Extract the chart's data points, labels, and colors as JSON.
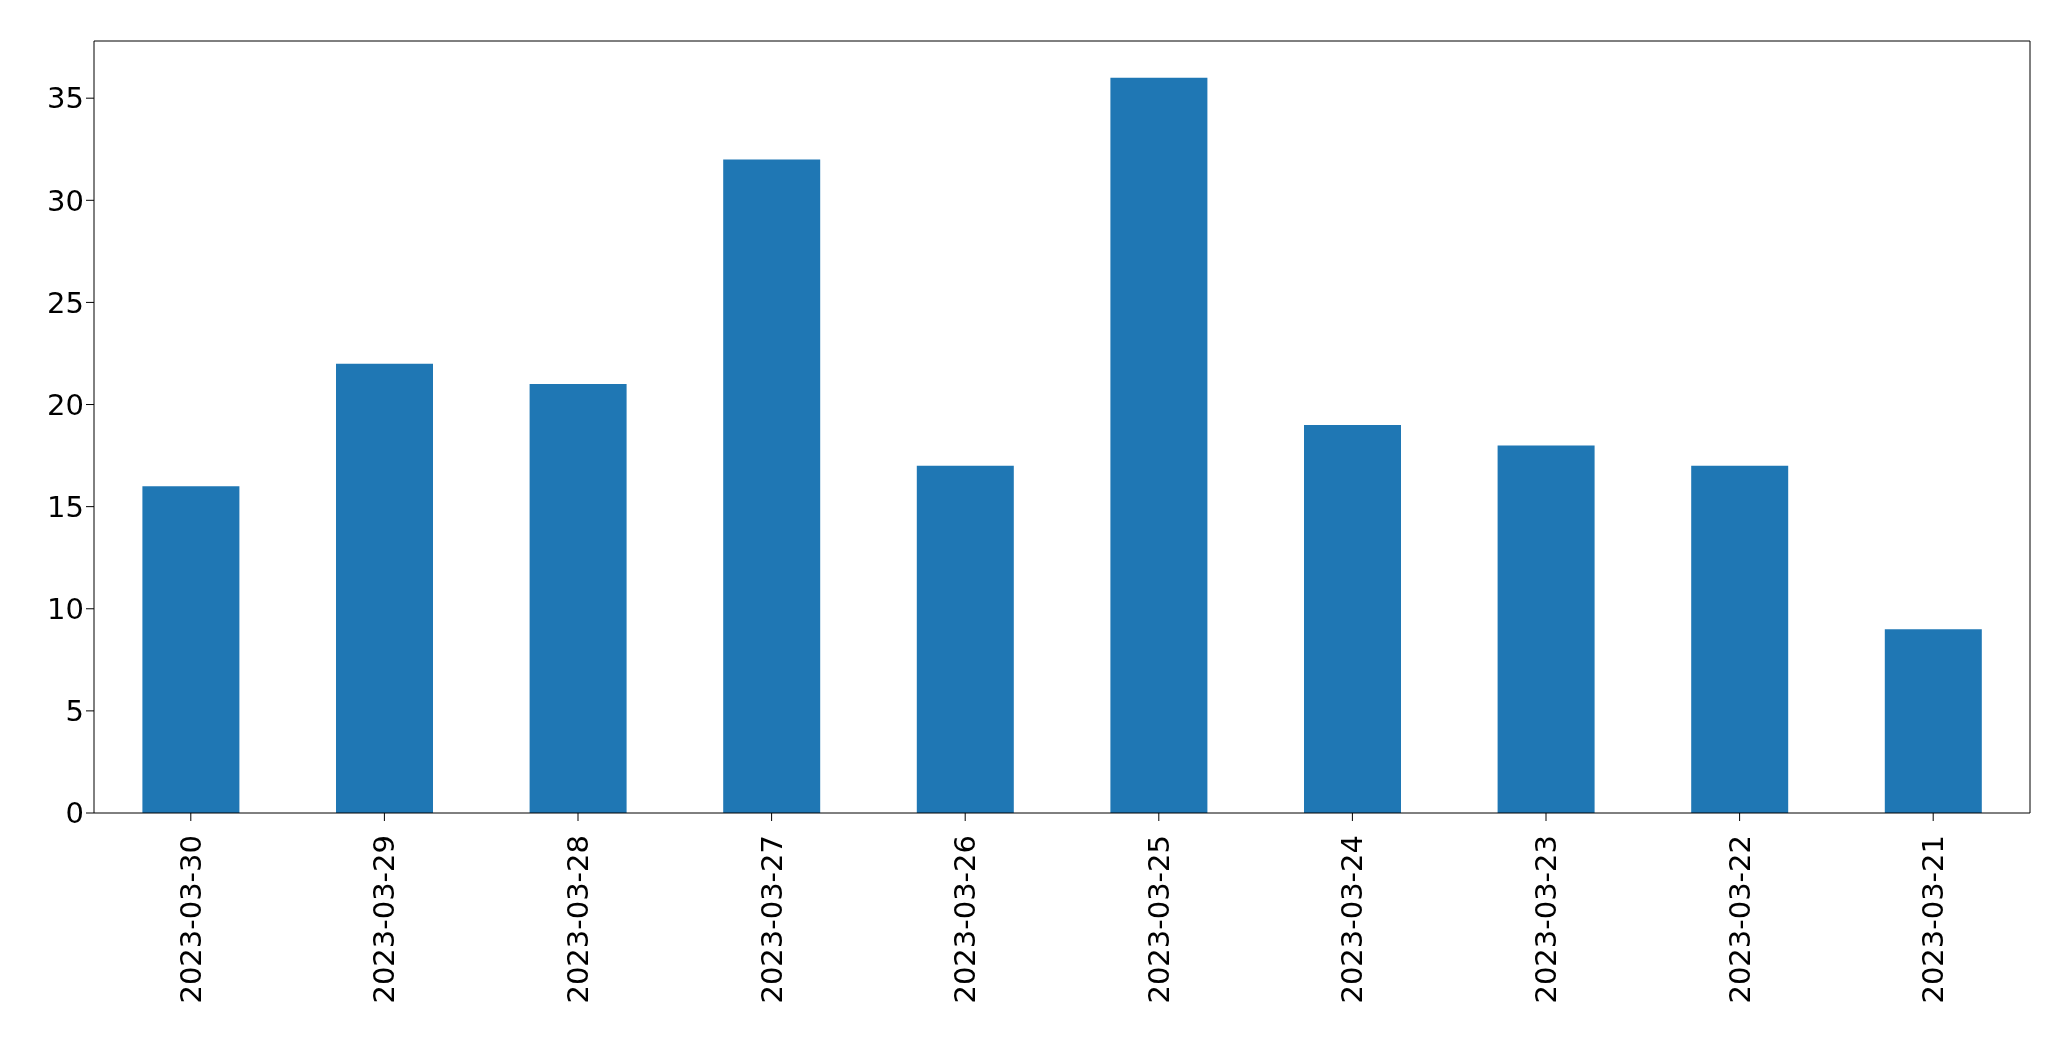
{
  "chart_data": {
    "type": "bar",
    "categories": [
      "2023-03-30",
      "2023-03-29",
      "2023-03-28",
      "2023-03-27",
      "2023-03-26",
      "2023-03-25",
      "2023-03-24",
      "2023-03-23",
      "2023-03-22",
      "2023-03-21"
    ],
    "values": [
      16,
      22,
      21,
      32,
      17,
      36,
      19,
      18,
      17,
      9
    ],
    "color": "#1f77b4",
    "ylim": [
      0,
      37.8
    ],
    "yticks": [
      0,
      5,
      10,
      15,
      20,
      25,
      30,
      35
    ],
    "grid": false
  }
}
